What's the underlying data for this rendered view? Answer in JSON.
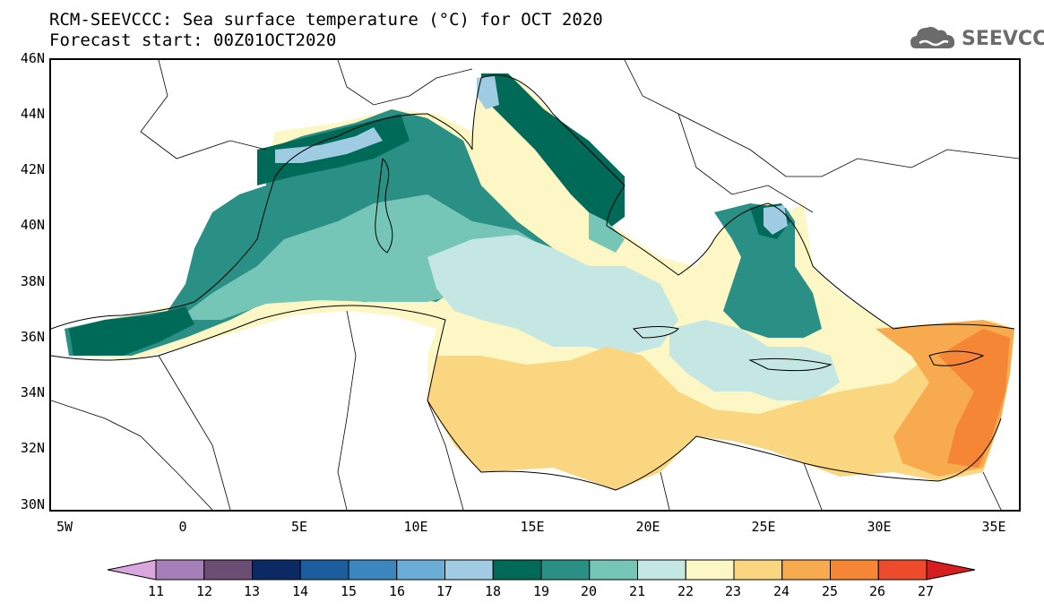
{
  "title_line1": "RCM-SEEVCCC: Sea surface temperature (°C) for OCT 2020",
  "title_line2": "Forecast start: 00Z01OCT2020",
  "logo_text": "SEEVCCC",
  "lat_labels": [
    "46N",
    "44N",
    "42N",
    "40N",
    "38N",
    "36N",
    "34N",
    "32N",
    "30N"
  ],
  "lon_labels": [
    "5W",
    "0",
    "5E",
    "10E",
    "15E",
    "20E",
    "25E",
    "30E",
    "35E"
  ],
  "colorbar": {
    "labels": [
      "11",
      "12",
      "13",
      "14",
      "15",
      "16",
      "17",
      "18",
      "19",
      "20",
      "21",
      "22",
      "23",
      "24",
      "25",
      "26",
      "27"
    ],
    "colors": [
      "#d9a6de",
      "#a47fb8",
      "#6c4e74",
      "#0b2a63",
      "#1c5e9d",
      "#3b86be",
      "#6aaed7",
      "#9fcbe3",
      "#006a59",
      "#2a8f84",
      "#76c6b8",
      "#c5e7e3",
      "#fdf7c6",
      "#fbd680",
      "#f7ab4e",
      "#f58636",
      "#ee4a2c",
      "#d71d1d"
    ]
  },
  "icons": {
    "logo": "cloud-logo-icon"
  }
}
